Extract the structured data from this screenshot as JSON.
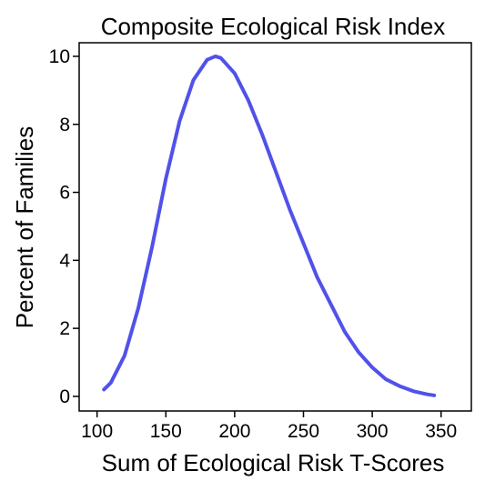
{
  "chart_data": {
    "type": "line",
    "title": "Composite Ecological Risk Index",
    "x_label": "Sum of Ecological Risk T-Scores",
    "y_label": "Percent of Families",
    "x": [
      105,
      110,
      120,
      130,
      140,
      150,
      160,
      170,
      180,
      186,
      190,
      200,
      210,
      220,
      230,
      240,
      250,
      260,
      270,
      280,
      290,
      300,
      310,
      320,
      330,
      340,
      345
    ],
    "series": [
      {
        "name": "Composite Ecological Risk Index",
        "color": "#5151ea",
        "values": [
          0.2,
          0.4,
          1.2,
          2.6,
          4.4,
          6.4,
          8.1,
          9.3,
          9.9,
          10.0,
          9.95,
          9.5,
          8.7,
          7.7,
          6.6,
          5.5,
          4.5,
          3.5,
          2.7,
          1.9,
          1.3,
          0.85,
          0.5,
          0.3,
          0.15,
          0.06,
          0.03
        ]
      }
    ],
    "xlim": [
      87,
      372
    ],
    "ylim": [
      -0.43,
      10.4
    ],
    "xticks": [
      100,
      150,
      200,
      250,
      300,
      350
    ],
    "yticks": [
      0,
      2,
      4,
      6,
      8,
      10
    ]
  }
}
